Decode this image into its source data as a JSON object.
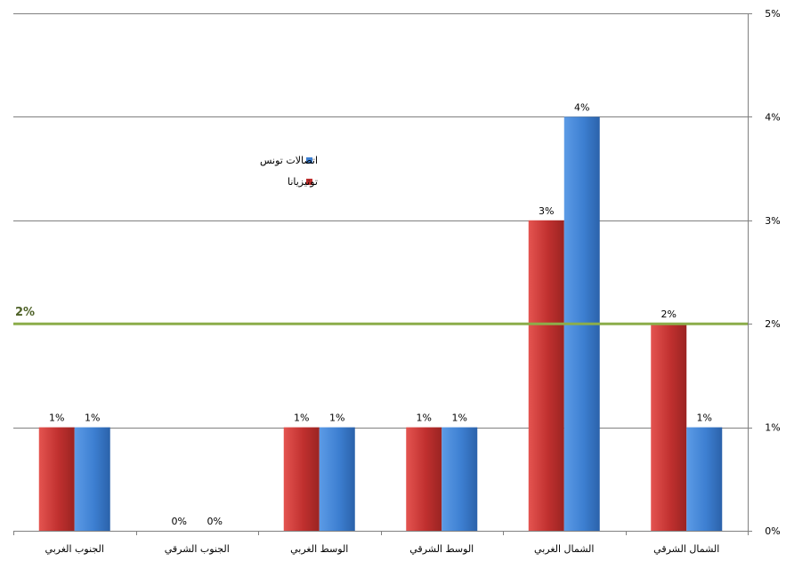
{
  "chart_data": {
    "type": "bar",
    "categories": [
      "الشمال الشرقي",
      "الشمال الغربي",
      "الوسط الشرقي",
      "الوسط الغربي",
      "الجنوب الشرقي",
      "الجنوب الغربي"
    ],
    "series": [
      {
        "name": "توتيزيانا",
        "values": [
          2,
          3,
          1,
          1,
          0,
          1
        ],
        "color": "#c0302f"
      },
      {
        "name": "اتصالات تونس",
        "values": [
          1,
          4,
          1,
          1,
          0,
          1
        ],
        "color": "#3d7fd1"
      }
    ],
    "value_labels": {
      "توتيزيانا": [
        "2%",
        "3%",
        "1%",
        "1%",
        "0%",
        "1%"
      ],
      "اتصالات تونس": [
        "1%",
        "4%",
        "1%",
        "1%",
        "0%",
        "1%"
      ]
    },
    "x_order": "right-to-left",
    "y_axis": {
      "position": "right",
      "range": [
        0,
        5
      ],
      "ticks": [
        0,
        1,
        2,
        3,
        4,
        5
      ],
      "tick_labels": [
        "0%",
        "1%",
        "2%",
        "3%",
        "4%",
        "5%"
      ]
    },
    "grid": true,
    "reference_line": {
      "value": 2,
      "label": "2%",
      "color": "#8cad4a"
    },
    "legend": {
      "placement": "upper-middle",
      "order": [
        "اتصالات تونس",
        "توتيزيانا"
      ]
    }
  }
}
